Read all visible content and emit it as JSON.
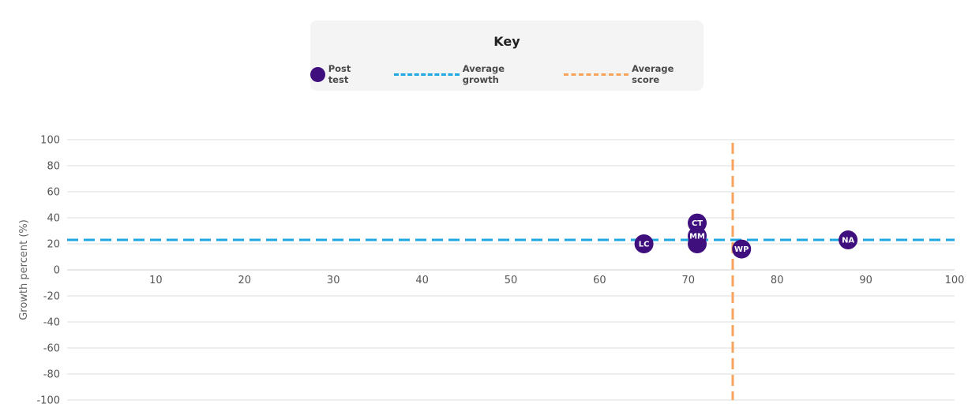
{
  "legend": {
    "title": "Key",
    "items": [
      {
        "label": "Post test",
        "kind": "dot",
        "color": "#3f0f7e"
      },
      {
        "label": "Average growth",
        "kind": "dash",
        "color": "#1ea7e1"
      },
      {
        "label": "Average score",
        "kind": "dash",
        "color": "#f6a45b"
      }
    ]
  },
  "chart_data": {
    "type": "scatter",
    "xlabel": "",
    "ylabel": "Growth percent (%)",
    "xlim": [
      0,
      100
    ],
    "ylim": [
      -100,
      100
    ],
    "x_ticks": [
      10,
      20,
      30,
      40,
      50,
      60,
      70,
      80,
      90,
      100
    ],
    "y_ticks": [
      100,
      80,
      60,
      40,
      20,
      0,
      -20,
      -40,
      -60,
      -80,
      -100
    ],
    "grid": true,
    "legend_position": "top-center",
    "average_growth": 23,
    "average_score": 75,
    "colors": {
      "points": "#3f0f7e",
      "average_growth": "#1ea7e1",
      "average_score": "#f6a45b",
      "grid": "#dddddd"
    },
    "series": [
      {
        "name": "Post test",
        "points": [
          {
            "label": "LC",
            "x": 65,
            "y": 20
          },
          {
            "label": "",
            "x": 71,
            "y": 20
          },
          {
            "label": "MM",
            "x": 71,
            "y": 26
          },
          {
            "label": "CT",
            "x": 71,
            "y": 36
          },
          {
            "label": "WP",
            "x": 76,
            "y": 16
          },
          {
            "label": "NA",
            "x": 88,
            "y": 23
          }
        ]
      }
    ]
  }
}
